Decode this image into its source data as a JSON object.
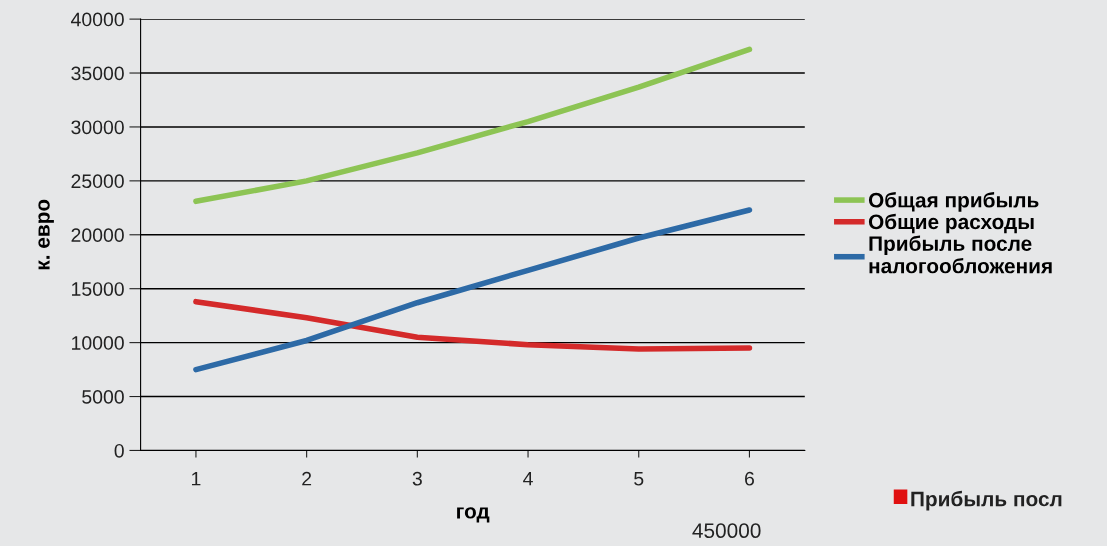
{
  "chart_data": {
    "type": "line",
    "xlabel": "год",
    "ylabel": "к. евро",
    "categories": [
      "1",
      "2",
      "3",
      "4",
      "5",
      "6"
    ],
    "series": [
      {
        "name": "Общая прибыль",
        "color": "#8dc454",
        "values": [
          23100,
          25000,
          27600,
          30500,
          33700,
          37200
        ]
      },
      {
        "name": "Общие расходы",
        "color": "#d42a2a",
        "values": [
          13800,
          12300,
          10500,
          9800,
          9400,
          9500
        ]
      },
      {
        "name": "Прибыль после\nналогообложения",
        "color": "#2d6aa6",
        "values": [
          7500,
          10200,
          13700,
          16700,
          19700,
          22300
        ]
      }
    ],
    "ylim": [
      0,
      40000
    ],
    "yticks": [
      0,
      5000,
      10000,
      15000,
      20000,
      25000,
      30000,
      35000,
      40000
    ],
    "grid": "y",
    "legend": "right",
    "marker": "none",
    "line_style": "solid",
    "annotations": [
      "Прибыль посл",
      "450000"
    ]
  }
}
